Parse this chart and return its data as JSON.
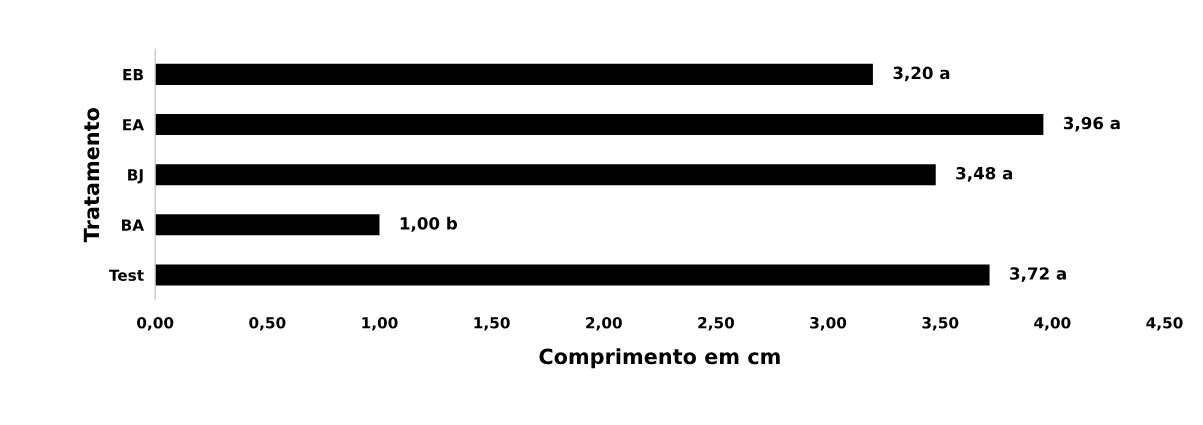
{
  "chart_data": {
    "type": "bar",
    "orientation": "horizontal",
    "xlabel": "Comprimento em cm",
    "ylabel": "Tratamento",
    "categories": [
      "EB",
      "EA",
      "BJ",
      "BA",
      "Test"
    ],
    "values": [
      3.2,
      3.96,
      3.48,
      1.0,
      3.72
    ],
    "value_labels": [
      "3,20 a",
      "3,96 a",
      "3,48 a",
      "1,00 b",
      "3,72 a"
    ],
    "color": "#000000",
    "xlim": [
      0,
      4.5
    ],
    "xticks": [
      {
        "value": 0,
        "label": "0,00"
      },
      {
        "value": 0.5,
        "label": "0,50"
      },
      {
        "value": 1,
        "label": "1,00"
      },
      {
        "value": 1.5,
        "label": "1,50"
      },
      {
        "value": 2,
        "label": "2,00"
      },
      {
        "value": 2.5,
        "label": "2,50"
      },
      {
        "value": 3,
        "label": "3,00"
      },
      {
        "value": 3.5,
        "label": "3,50"
      },
      {
        "value": 4,
        "label": "4,00"
      },
      {
        "value": 4.5,
        "label": "4,50"
      }
    ],
    "grid": false,
    "legend": false
  }
}
